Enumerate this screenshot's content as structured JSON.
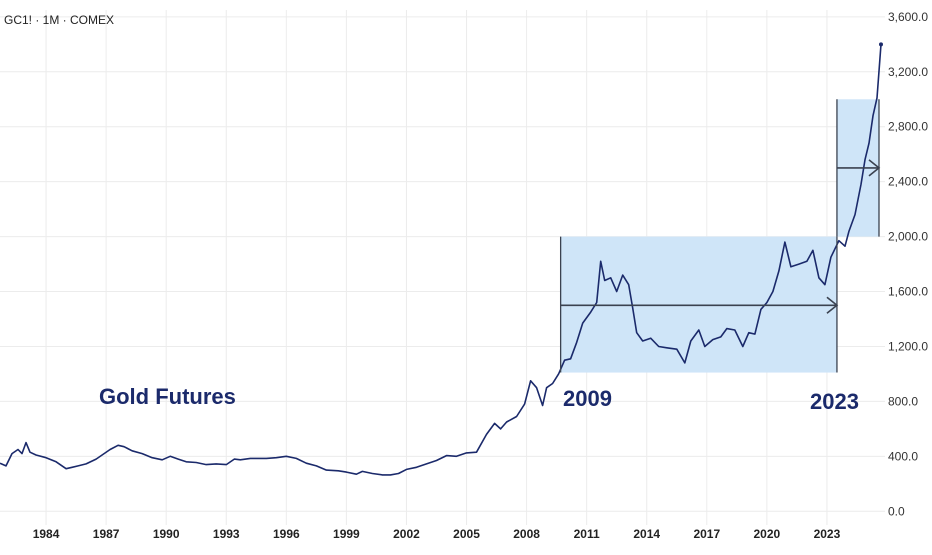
{
  "header": {
    "ticker": "GC1! · 1M · COMEX"
  },
  "annotations": {
    "title": "Gold Futures",
    "start_year": "2009",
    "end_year": "2023"
  },
  "colors": {
    "line": "#1b2a6b",
    "box_fill": "#cfe5f8",
    "arrow": "#3b4250",
    "grid": "#ececec"
  },
  "chart_data": {
    "type": "line",
    "title": "Gold Futures",
    "xlabel": "",
    "ylabel": "",
    "ylim": [
      -100,
      3650
    ],
    "xlim": [
      1981.7,
      2025.9
    ],
    "grid": true,
    "y_ticks": [
      "0.0",
      "400.0",
      "800.0",
      "1,200.0",
      "1,600.0",
      "2,000.0",
      "2,400.0",
      "2,800.0",
      "3,200.0",
      "3,600.0"
    ],
    "y_tick_values": [
      0,
      400,
      800,
      1200,
      1600,
      2000,
      2400,
      2800,
      3200,
      3600
    ],
    "x_ticks": [
      "1984",
      "1987",
      "1990",
      "1993",
      "1996",
      "1999",
      "2002",
      "2005",
      "2008",
      "2011",
      "2014",
      "2017",
      "2020",
      "2023"
    ],
    "x_tick_values": [
      1984,
      1987,
      1990,
      1993,
      1996,
      1999,
      2002,
      2005,
      2008,
      2011,
      2014,
      2017,
      2020,
      2023
    ],
    "series": [
      {
        "name": "",
        "x": [
          1981.7,
          1982.0,
          1982.3,
          1982.6,
          1982.8,
          1983.0,
          1983.2,
          1983.5,
          1984.0,
          1984.5,
          1985.0,
          1985.3,
          1985.6,
          1986.0,
          1986.5,
          1986.8,
          1987.2,
          1987.6,
          1987.9,
          1988.3,
          1988.8,
          1989.3,
          1989.8,
          1990.2,
          1990.6,
          1991.0,
          1991.5,
          1992.0,
          1992.5,
          1993.0,
          1993.4,
          1993.7,
          1994.2,
          1995.0,
          1995.5,
          1996.0,
          1996.5,
          1997.0,
          1997.5,
          1998.0,
          1998.6,
          1999.0,
          1999.5,
          1999.8,
          2000.3,
          2000.8,
          2001.2,
          2001.6,
          2002.0,
          2002.5,
          2003.0,
          2003.5,
          2004.0,
          2004.5,
          2005.0,
          2005.5,
          2006.0,
          2006.4,
          2006.7,
          2007.0,
          2007.5,
          2007.9,
          2008.2,
          2008.5,
          2008.8,
          2009.0,
          2009.3,
          2009.6,
          2009.9,
          2010.2,
          2010.5,
          2010.8,
          2011.2,
          2011.5,
          2011.7,
          2011.9,
          2012.2,
          2012.5,
          2012.8,
          2013.1,
          2013.3,
          2013.5,
          2013.8,
          2014.2,
          2014.6,
          2015.0,
          2015.5,
          2015.9,
          2016.2,
          2016.6,
          2016.9,
          2017.3,
          2017.7,
          2018.0,
          2018.4,
          2018.8,
          2019.1,
          2019.4,
          2019.7,
          2020.0,
          2020.3,
          2020.6,
          2020.9,
          2021.2,
          2021.6,
          2022.0,
          2022.3,
          2022.6,
          2022.9,
          2023.2,
          2023.6,
          2023.9,
          2024.1,
          2024.4,
          2024.7,
          2024.9,
          2025.1,
          2025.3,
          2025.5,
          2025.7
        ],
        "values": [
          350,
          330,
          420,
          450,
          420,
          500,
          430,
          410,
          390,
          360,
          310,
          320,
          330,
          345,
          380,
          410,
          450,
          480,
          470,
          440,
          420,
          390,
          375,
          400,
          380,
          360,
          355,
          340,
          345,
          340,
          380,
          375,
          385,
          385,
          390,
          400,
          385,
          350,
          330,
          300,
          295,
          285,
          270,
          290,
          275,
          265,
          265,
          275,
          305,
          320,
          345,
          370,
          405,
          400,
          425,
          430,
          560,
          640,
          600,
          650,
          690,
          780,
          950,
          900,
          770,
          900,
          930,
          1000,
          1100,
          1110,
          1230,
          1370,
          1450,
          1520,
          1820,
          1680,
          1700,
          1600,
          1720,
          1650,
          1480,
          1300,
          1240,
          1260,
          1200,
          1190,
          1180,
          1080,
          1240,
          1320,
          1200,
          1250,
          1270,
          1330,
          1320,
          1200,
          1300,
          1290,
          1470,
          1520,
          1600,
          1750,
          1960,
          1780,
          1800,
          1820,
          1900,
          1700,
          1650,
          1850,
          1970,
          1930,
          2040,
          2160,
          2380,
          2560,
          2680,
          2880,
          3010,
          3400
        ]
      }
    ],
    "highlight_ranges": [
      {
        "x": [
          2009.7,
          2023.5
        ],
        "y": [
          1010,
          2000
        ]
      },
      {
        "x": [
          2023.5,
          2025.6
        ],
        "y": [
          2000,
          3000
        ]
      }
    ]
  }
}
